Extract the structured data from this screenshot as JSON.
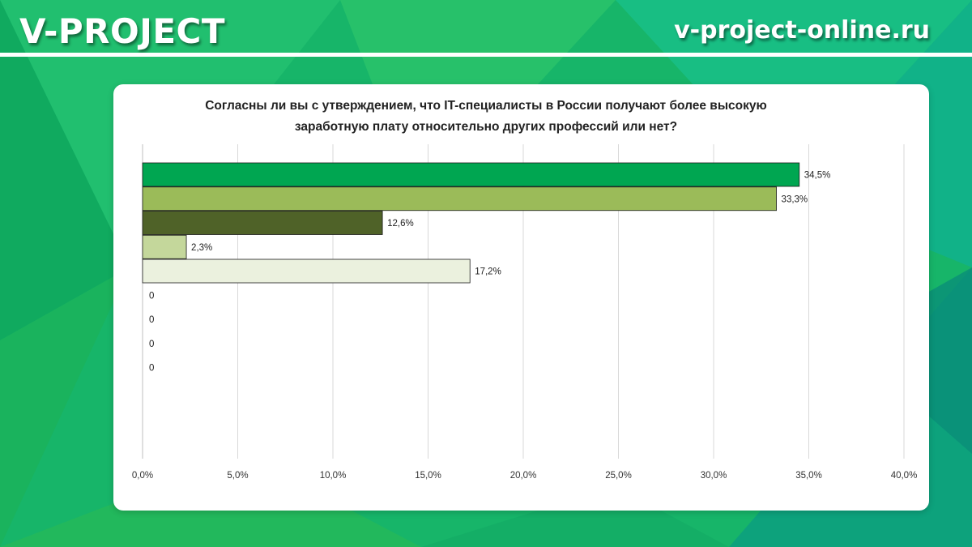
{
  "header": {
    "brand": "V-PROJECT",
    "site_url": "v-project-online.ru"
  },
  "colors": {
    "background": "#18b86a",
    "header_rule": "#ffffff",
    "card": "#ffffff"
  },
  "chart_data": {
    "type": "bar",
    "orientation": "horizontal",
    "title_lines": [
      "Согласны ли вы с утверждением, что IT-специалисты в России получают более высокую",
      "заработную плату относительно других профессий или нет?"
    ],
    "series": [
      {
        "value": 34.5,
        "label": "34,5%",
        "color": "#00a651"
      },
      {
        "value": 33.3,
        "label": "33,3%",
        "color": "#9bbb59"
      },
      {
        "value": 12.6,
        "label": "12,6%",
        "color": "#4f6228"
      },
      {
        "value": 2.3,
        "label": "2,3%",
        "color": "#c4d79b"
      },
      {
        "value": 17.2,
        "label": "17,2%",
        "color": "#ebf1de"
      },
      {
        "value": 0,
        "label": "0"
      },
      {
        "value": 0,
        "label": "0"
      },
      {
        "value": 0,
        "label": "0"
      },
      {
        "value": 0,
        "label": "0"
      }
    ],
    "xlim": [
      0,
      40
    ],
    "x_ticks": [
      {
        "value": 0,
        "label": "0,0%"
      },
      {
        "value": 5,
        "label": "5,0%"
      },
      {
        "value": 10,
        "label": "10,0%"
      },
      {
        "value": 15,
        "label": "15,0%"
      },
      {
        "value": 20,
        "label": "20,0%"
      },
      {
        "value": 25,
        "label": "25,0%"
      },
      {
        "value": 30,
        "label": "30,0%"
      },
      {
        "value": 35,
        "label": "35,0%"
      },
      {
        "value": 40,
        "label": "40,0%"
      }
    ],
    "grid": true,
    "legend": "none"
  }
}
